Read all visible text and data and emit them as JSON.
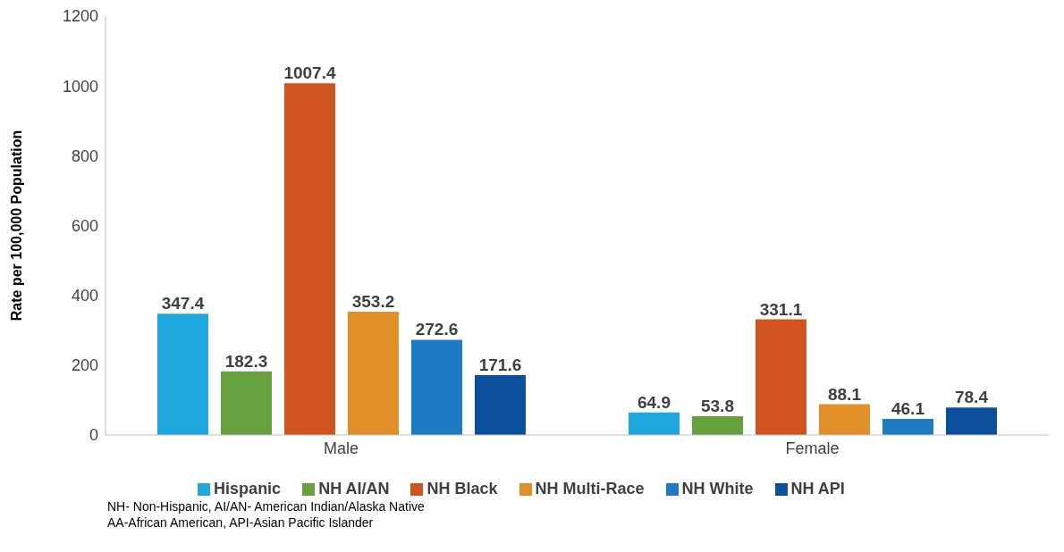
{
  "chart_data": {
    "type": "bar",
    "ylabel": "Rate per 100,000 Population",
    "categories": [
      "Male",
      "Female"
    ],
    "series": [
      {
        "name": "Hispanic",
        "color": "#1fa7e0",
        "values": [
          347.4,
          64.9
        ]
      },
      {
        "name": "NH AI/AN",
        "color": "#67a03f",
        "values": [
          182.3,
          53.8
        ]
      },
      {
        "name": "NH Black",
        "color": "#d1541f",
        "values": [
          1007.4,
          331.1
        ]
      },
      {
        "name": "NH Multi-Race",
        "color": "#e08f29",
        "values": [
          353.2,
          88.1
        ]
      },
      {
        "name": "NH White",
        "color": "#1c7bc3",
        "values": [
          272.6,
          46.1
        ]
      },
      {
        "name": "NH API",
        "color": "#0c4f9c",
        "values": [
          171.6,
          78.4
        ]
      }
    ],
    "ylim": [
      0,
      1200
    ],
    "yticks": [
      0,
      200,
      400,
      600,
      800,
      1000,
      1200
    ],
    "grid": false,
    "legend": "bottom",
    "data_labels": true,
    "annotations": [
      "NH- Non-Hispanic, AI/AN- American Indian/Alaska Native",
      "AA-African American, API-Asian Pacific Islander"
    ]
  }
}
